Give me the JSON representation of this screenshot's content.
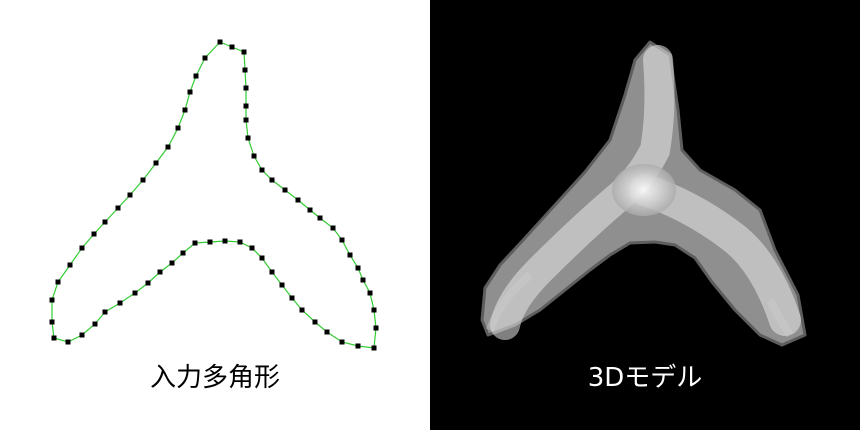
{
  "left_panel": {
    "caption": "入力多角形",
    "background": "#ffffff",
    "outline_color": "#33cc33",
    "vertex_color": "#000000"
  },
  "right_panel": {
    "caption": "3Dモデル",
    "background": "#000000"
  }
}
